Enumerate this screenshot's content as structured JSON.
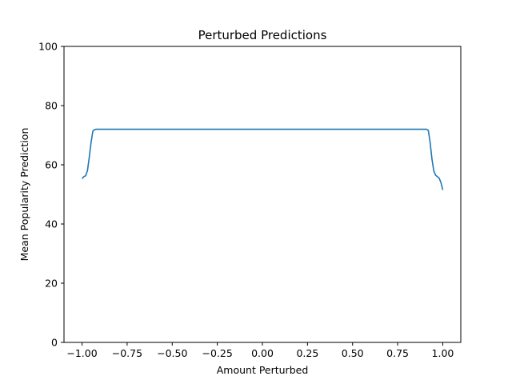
{
  "chart_data": {
    "type": "line",
    "title": "Perturbed Predictions",
    "xlabel": "Amount Perturbed",
    "ylabel": "Mean Popularity Prediction",
    "xlim": [
      -1.1,
      1.1
    ],
    "ylim": [
      0,
      100
    ],
    "xticks": [
      -1.0,
      -0.75,
      -0.5,
      -0.25,
      0.0,
      0.25,
      0.5,
      0.75,
      1.0
    ],
    "xtick_labels": [
      "−1.00",
      "−0.75",
      "−0.50",
      "−0.25",
      "0.00",
      "0.25",
      "0.50",
      "0.75",
      "1.00"
    ],
    "yticks": [
      0,
      20,
      40,
      60,
      80,
      100
    ],
    "ytick_labels": [
      "0",
      "20",
      "40",
      "60",
      "80",
      "100"
    ],
    "grid": false,
    "series": [
      {
        "color": "#1f77b4",
        "x": [
          -1.0,
          -0.99,
          -0.98,
          -0.97,
          -0.96,
          -0.95,
          -0.94,
          -0.93,
          -0.92,
          -0.9,
          -0.5,
          0.0,
          0.5,
          0.9,
          0.91,
          0.92,
          0.93,
          0.94,
          0.95,
          0.96,
          0.97,
          0.98,
          0.99,
          1.0
        ],
        "y": [
          55.3,
          56.0,
          56.3,
          58.0,
          62.5,
          67.5,
          71.4,
          71.9,
          72.0,
          72.0,
          72.0,
          72.0,
          72.0,
          72.0,
          72.0,
          71.6,
          67.5,
          62.0,
          58.0,
          56.5,
          56.0,
          55.5,
          54.0,
          51.5
        ]
      }
    ]
  }
}
